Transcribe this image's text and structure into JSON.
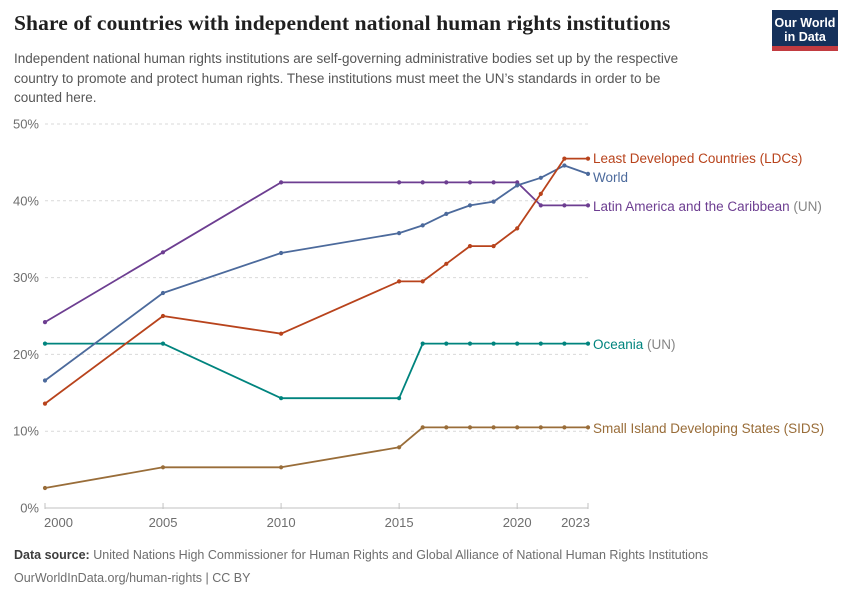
{
  "header": {
    "title": "Share of countries with independent national human rights institutions",
    "subtitle_lines": [
      "Independent national human rights institutions are self-governing administrative bodies set up by the respective",
      "country to promote and protect human rights. These institutions must meet the UN’s standards in order to be",
      "counted here."
    ],
    "logo": {
      "line1": "Our World",
      "line2": "in Data",
      "bg_color": "#15315b",
      "accent_color": "#c23b40"
    }
  },
  "chart_data": {
    "type": "line",
    "title": "Share of countries with independent national human rights institutions",
    "x": [
      2000,
      2005,
      2010,
      2015,
      2016,
      2017,
      2018,
      2019,
      2020,
      2021,
      2022,
      2023
    ],
    "x_tick_labels": [
      "2000",
      "2005",
      "2010",
      "2015",
      "2020",
      "2023"
    ],
    "x_ticks": [
      2000,
      2005,
      2010,
      2015,
      2020,
      2023
    ],
    "y_ticks": [
      0,
      10,
      20,
      30,
      40,
      50
    ],
    "y_unit": "%",
    "ylim": [
      0,
      50
    ],
    "xlim": [
      2000,
      2023
    ],
    "grid": "horizontal-dashed",
    "legend_position": "labels-at-line-ends",
    "series": [
      {
        "name": "Least Developed Countries (LDCs)",
        "label": "Least Developed Countries (LDCs)",
        "label_suffix": "",
        "color": "#b8431c",
        "values": [
          13.6,
          25.0,
          22.7,
          29.5,
          29.5,
          31.8,
          34.1,
          34.1,
          36.4,
          40.9,
          45.5,
          45.5
        ]
      },
      {
        "name": "World",
        "label": "World",
        "label_suffix": "",
        "color": "#4c6a9c",
        "values": [
          16.6,
          28.0,
          33.2,
          35.8,
          36.8,
          38.3,
          39.4,
          39.9,
          42.0,
          43.0,
          44.6,
          43.5
        ]
      },
      {
        "name": "Latin America and the Caribbean (UN)",
        "label": "Latin America and the Caribbean",
        "label_suffix": " (UN)",
        "color": "#6d3e91",
        "values": [
          24.2,
          33.3,
          42.4,
          42.4,
          42.4,
          42.4,
          42.4,
          42.4,
          42.4,
          39.4,
          39.4,
          39.4
        ]
      },
      {
        "name": "Oceania (UN)",
        "label": "Oceania",
        "label_suffix": " (UN)",
        "color": "#00847e",
        "values": [
          21.4,
          21.4,
          14.3,
          14.3,
          21.4,
          21.4,
          21.4,
          21.4,
          21.4,
          21.4,
          21.4,
          21.4
        ]
      },
      {
        "name": "Small Island Developing States (SIDS)",
        "label": "Small Island Developing States (SIDS)",
        "label_suffix": "",
        "color": "#996d39",
        "values": [
          2.6,
          5.3,
          5.3,
          7.9,
          10.5,
          10.5,
          10.5,
          10.5,
          10.5,
          10.5,
          10.5,
          10.5
        ]
      }
    ]
  },
  "colors": {
    "suffix_gray": "#858585",
    "tick_text": "#6e6e6e",
    "gridline": "#d9d9d9",
    "axis_line": "#c2c2c2"
  },
  "footer": {
    "source_label": "Data source:",
    "source_text": "United Nations High Commissioner for Human Rights and Global Alliance of National Human Rights Institutions",
    "license": "OurWorldInData.org/human-rights | CC BY"
  }
}
